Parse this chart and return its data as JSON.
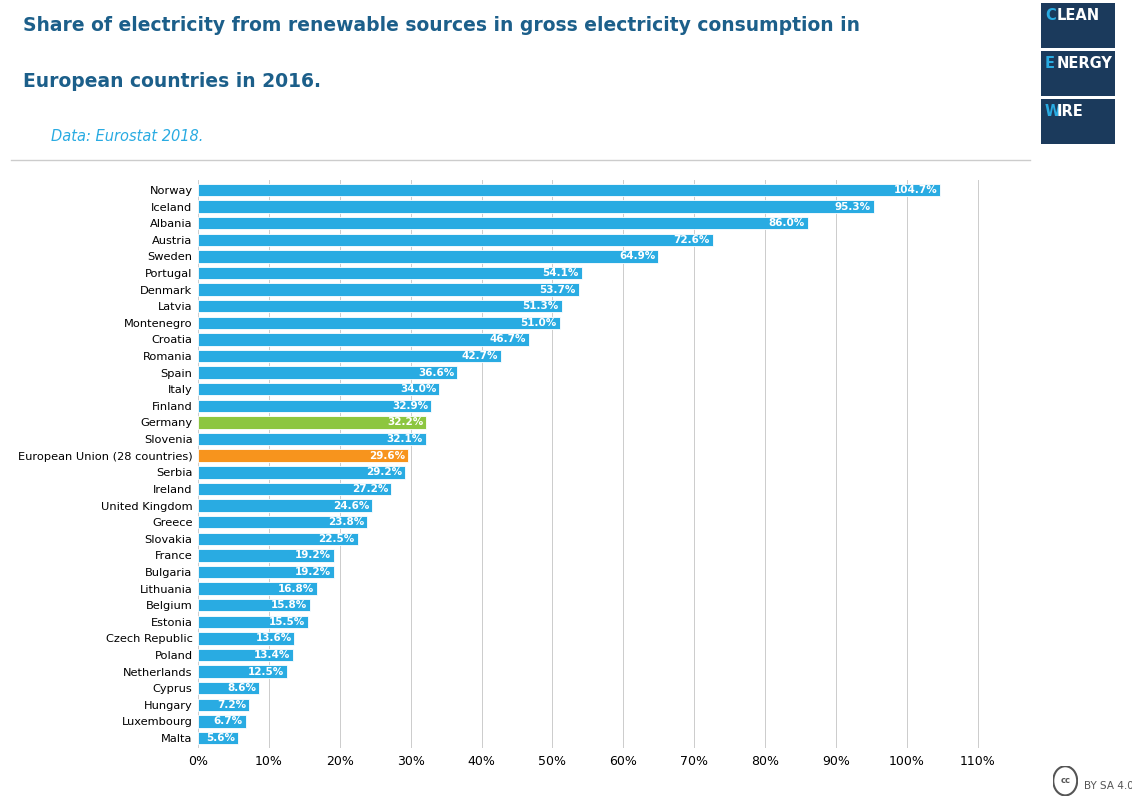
{
  "title_line1": "Share of electricity from renewable sources in gross electricity consumption in",
  "title_line2": "European countries in 2016.",
  "subtitle": "Data: Eurostat 2018.",
  "countries": [
    "Norway",
    "Iceland",
    "Albania",
    "Austria",
    "Sweden",
    "Portugal",
    "Denmark",
    "Latvia",
    "Montenegro",
    "Croatia",
    "Romania",
    "Spain",
    "Italy",
    "Finland",
    "Germany",
    "Slovenia",
    "European Union (28 countries)",
    "Serbia",
    "Ireland",
    "United Kingdom",
    "Greece",
    "Slovakia",
    "France",
    "Bulgaria",
    "Lithuania",
    "Belgium",
    "Estonia",
    "Czech Republic",
    "Poland",
    "Netherlands",
    "Cyprus",
    "Hungary",
    "Luxembourg",
    "Malta"
  ],
  "values": [
    104.7,
    95.3,
    86.0,
    72.6,
    64.9,
    54.1,
    53.7,
    51.3,
    51.0,
    46.7,
    42.7,
    36.6,
    34.0,
    32.9,
    32.2,
    32.1,
    29.6,
    29.2,
    27.2,
    24.6,
    23.8,
    22.5,
    19.2,
    19.2,
    16.8,
    15.8,
    15.5,
    13.6,
    13.4,
    12.5,
    8.6,
    7.2,
    6.7,
    5.6
  ],
  "bar_colors": [
    "#29ABE2",
    "#29ABE2",
    "#29ABE2",
    "#29ABE2",
    "#29ABE2",
    "#29ABE2",
    "#29ABE2",
    "#29ABE2",
    "#29ABE2",
    "#29ABE2",
    "#29ABE2",
    "#29ABE2",
    "#29ABE2",
    "#29ABE2",
    "#8DC63F",
    "#29ABE2",
    "#F7941D",
    "#29ABE2",
    "#29ABE2",
    "#29ABE2",
    "#29ABE2",
    "#29ABE2",
    "#29ABE2",
    "#29ABE2",
    "#29ABE2",
    "#29ABE2",
    "#29ABE2",
    "#29ABE2",
    "#29ABE2",
    "#29ABE2",
    "#29ABE2",
    "#29ABE2",
    "#29ABE2",
    "#29ABE2"
  ],
  "xlim": [
    0,
    115
  ],
  "xticks": [
    0,
    10,
    20,
    30,
    40,
    50,
    60,
    70,
    80,
    90,
    100,
    110
  ],
  "xticklabels": [
    "0%",
    "10%",
    "20%",
    "30%",
    "40%",
    "50%",
    "60%",
    "70%",
    "80%",
    "90%",
    "100%",
    "110%"
  ],
  "title_color": "#1C5F8A",
  "subtitle_color": "#29ABE2",
  "bg_color": "#FFFFFF",
  "bar_label_fontsize": 7.5,
  "logo_dark": "#1B3A5C",
  "logo_highlight": "#29ABE2"
}
